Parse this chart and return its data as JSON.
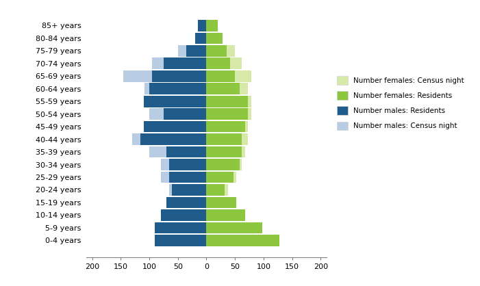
{
  "age_groups": [
    "0-4 years",
    "5-9 years",
    "10-14 years",
    "15-19 years",
    "20-24 years",
    "25-29 years",
    "30-34 years",
    "35-39 years",
    "40-44 years",
    "45-49 years",
    "50-54 years",
    "55-59 years",
    "60-64 years",
    "65-69 years",
    "70-74 years",
    "75-79 years",
    "80-84 years",
    "85+ years"
  ],
  "males_residents": [
    90,
    90,
    80,
    70,
    60,
    65,
    65,
    70,
    115,
    110,
    75,
    110,
    100,
    95,
    75,
    35,
    20,
    15
  ],
  "males_census_night": [
    90,
    90,
    80,
    70,
    65,
    80,
    80,
    100,
    130,
    78,
    100,
    108,
    108,
    145,
    95,
    50,
    20,
    15
  ],
  "females_residents": [
    128,
    98,
    68,
    52,
    32,
    48,
    58,
    62,
    62,
    68,
    72,
    72,
    58,
    50,
    42,
    35,
    28,
    20
  ],
  "females_census_night": [
    128,
    98,
    68,
    52,
    38,
    52,
    62,
    68,
    72,
    72,
    78,
    78,
    72,
    78,
    62,
    50,
    28,
    20
  ],
  "color_males_residents": "#1F5C8B",
  "color_males_census": "#B8CCE4",
  "color_females_residents": "#8DC63F",
  "color_females_census": "#D6E9A8",
  "xlim_left": -210,
  "xlim_right": 210,
  "xticks": [
    -200,
    -150,
    -100,
    -50,
    0,
    50,
    100,
    150,
    200
  ],
  "xticklabels": [
    "200",
    "150",
    "100",
    "50",
    "0",
    "50",
    "100",
    "150",
    "200"
  ],
  "legend_labels": [
    "Number females: Census night",
    "Number females: Residents",
    "Number males: Residents",
    "Number males: Census night"
  ],
  "legend_colors": [
    "#D6E9A8",
    "#8DC63F",
    "#1F5C8B",
    "#B8CCE4"
  ]
}
